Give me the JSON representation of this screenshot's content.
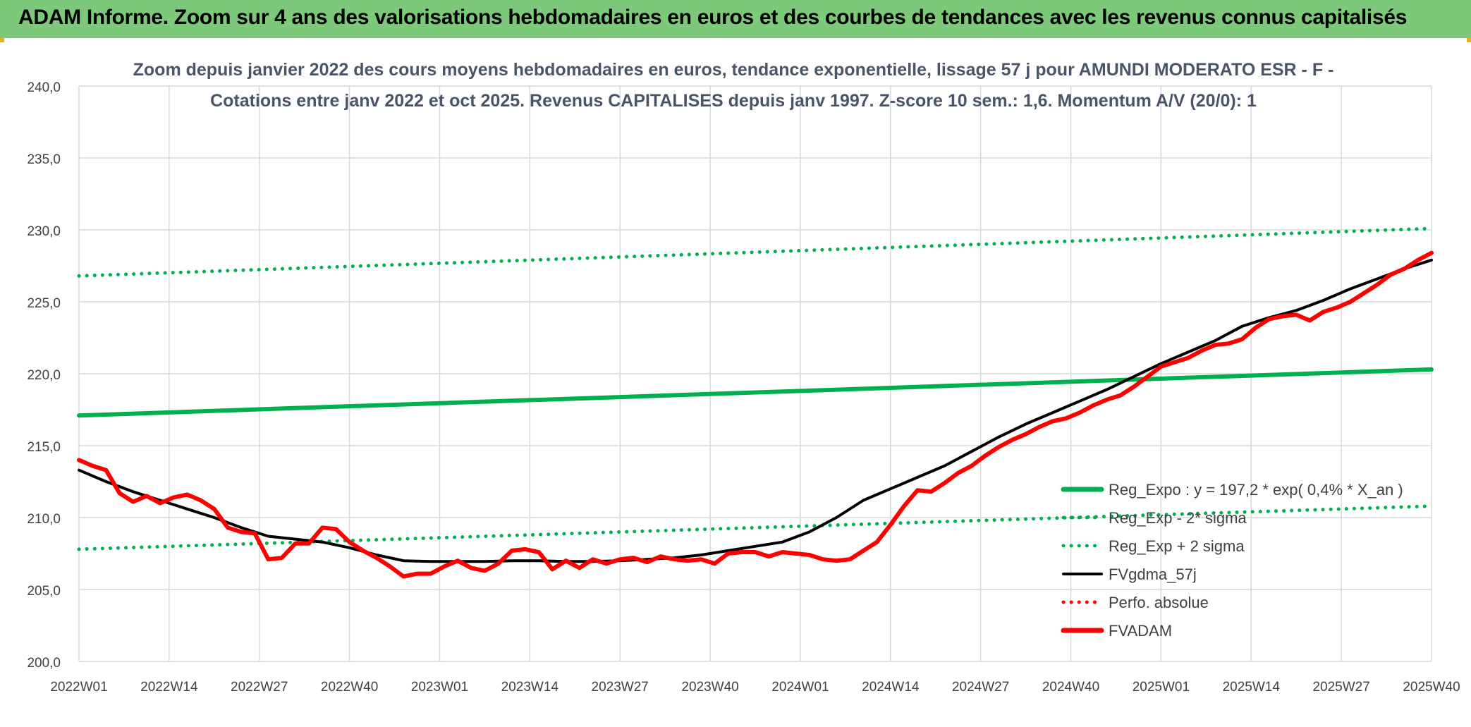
{
  "banner": {
    "title": "ADAM Informe. Zoom sur 4 ans des valorisations hebdomadaires en euros et des courbes de tendances avec les revenus connus capitalisés"
  },
  "chart_data": {
    "type": "line",
    "title_line1": "Zoom depuis janvier 2022 des cours moyens hebdomadaires en euros, tendance exponentielle, lissage 57 j pour AMUNDI MODERATO ESR - F -",
    "title_line2": "Cotations entre janv 2022 et oct 2025. Revenus CAPITALISES depuis janv 1997. Z-score 10 sem.: 1,6. Momentum A/V (20/0): 1",
    "xlabel": "",
    "ylabel": "",
    "ylim": [
      200,
      240
    ],
    "yticks": [
      "200,0",
      "205,0",
      "210,0",
      "215,0",
      "220,0",
      "225,0",
      "230,0",
      "235,0",
      "240,0"
    ],
    "xticks": [
      "2022W01",
      "2022W14",
      "2022W27",
      "2022W40",
      "2023W01",
      "2023W14",
      "2023W27",
      "2023W40",
      "2024W01",
      "2024W14",
      "2024W27",
      "2024W40",
      "2025W01",
      "2025W14",
      "2025W27",
      "2025W40"
    ],
    "grid": true,
    "legend_position": "bottom-right",
    "series": [
      {
        "name": "Reg_Expo : y = 197,2 * exp( 0,4% *  X_an )",
        "style": "solid-thick",
        "color": "#00b050",
        "x": [
          0,
          200
        ],
        "y": [
          217.1,
          220.3
        ]
      },
      {
        "name": "Reg_Exp - 2* sigma",
        "style": "dotted",
        "color": "#00b050",
        "x": [
          0,
          200
        ],
        "y": [
          207.8,
          210.8
        ]
      },
      {
        "name": "Reg_Exp + 2 sigma",
        "style": "dotted",
        "color": "#00b050",
        "x": [
          0,
          200
        ],
        "y": [
          226.8,
          230.1
        ]
      },
      {
        "name": "FVgdma_57j",
        "style": "solid",
        "color": "#000000",
        "x": [
          0,
          4,
          8,
          12,
          16,
          20,
          24,
          28,
          32,
          36,
          40,
          44,
          48,
          52,
          56,
          60,
          64,
          68,
          72,
          76,
          80,
          84,
          88,
          92,
          96,
          100,
          104,
          108,
          112,
          116,
          120,
          124,
          128,
          132,
          136,
          140,
          144,
          148,
          152,
          156,
          160,
          164,
          168,
          172,
          176,
          180,
          184,
          188,
          192,
          196,
          200
        ],
        "y": [
          213.3,
          212.5,
          211.8,
          211.2,
          210.6,
          210.0,
          209.3,
          208.7,
          208.5,
          208.3,
          207.9,
          207.4,
          207.0,
          206.95,
          206.95,
          206.95,
          207.0,
          207.0,
          206.95,
          206.95,
          207.0,
          207.1,
          207.2,
          207.4,
          207.7,
          208.0,
          208.3,
          209.0,
          210.0,
          211.2,
          212.0,
          212.8,
          213.6,
          214.6,
          215.6,
          216.5,
          217.3,
          218.1,
          218.9,
          219.8,
          220.7,
          221.5,
          222.3,
          223.3,
          223.9,
          224.4,
          225.1,
          225.9,
          226.6,
          227.3,
          227.9
        ]
      },
      {
        "name": "Perfo. absolue",
        "style": "dotted",
        "color": "#ff0000",
        "x": [],
        "y": []
      },
      {
        "name": "FVADAM",
        "style": "solid-thick",
        "color": "#ff0000",
        "x": [
          0,
          2,
          4,
          6,
          8,
          10,
          12,
          14,
          16,
          18,
          20,
          22,
          24,
          26,
          28,
          30,
          32,
          34,
          36,
          38,
          40,
          42,
          44,
          46,
          48,
          50,
          52,
          54,
          56,
          58,
          60,
          62,
          64,
          66,
          68,
          70,
          72,
          74,
          76,
          78,
          80,
          82,
          84,
          86,
          88,
          90,
          92,
          94,
          96,
          98,
          100,
          102,
          104,
          106,
          108,
          110,
          112,
          114,
          116,
          118,
          120,
          122,
          124,
          126,
          128,
          130,
          132,
          134,
          136,
          138,
          140,
          142,
          144,
          146,
          148,
          150,
          152,
          154,
          156,
          158,
          160,
          162,
          164,
          166,
          168,
          170,
          172,
          174,
          176,
          178,
          180,
          182,
          184,
          186,
          188,
          190,
          192,
          194,
          196,
          198,
          200
        ],
        "y": [
          214.0,
          213.6,
          213.3,
          211.7,
          211.1,
          211.5,
          211.0,
          211.4,
          211.6,
          211.2,
          210.6,
          209.3,
          209.0,
          208.9,
          207.1,
          207.2,
          208.2,
          208.2,
          209.3,
          209.2,
          208.3,
          207.7,
          207.2,
          206.6,
          205.9,
          206.1,
          206.1,
          206.6,
          207.0,
          206.5,
          206.3,
          206.8,
          207.7,
          207.8,
          207.6,
          206.4,
          207.0,
          206.5,
          207.1,
          206.8,
          207.1,
          207.2,
          206.9,
          207.3,
          207.1,
          207.0,
          207.1,
          206.8,
          207.5,
          207.6,
          207.6,
          207.3,
          207.6,
          207.5,
          207.4,
          207.1,
          207.0,
          207.1,
          207.7,
          208.3,
          209.5,
          210.8,
          211.9,
          211.8,
          212.4,
          213.1,
          213.6,
          214.3,
          214.9,
          215.4,
          215.8,
          216.3,
          216.7,
          216.9,
          217.3,
          217.8,
          218.2,
          218.5,
          219.1,
          219.8,
          220.5,
          220.8,
          221.1,
          221.6,
          222.0,
          222.1,
          222.4,
          223.2,
          223.8,
          224.0,
          224.1,
          223.7,
          224.3,
          224.6,
          225.0,
          225.6,
          226.2,
          226.9,
          227.3,
          227.9,
          228.4
        ]
      }
    ]
  }
}
